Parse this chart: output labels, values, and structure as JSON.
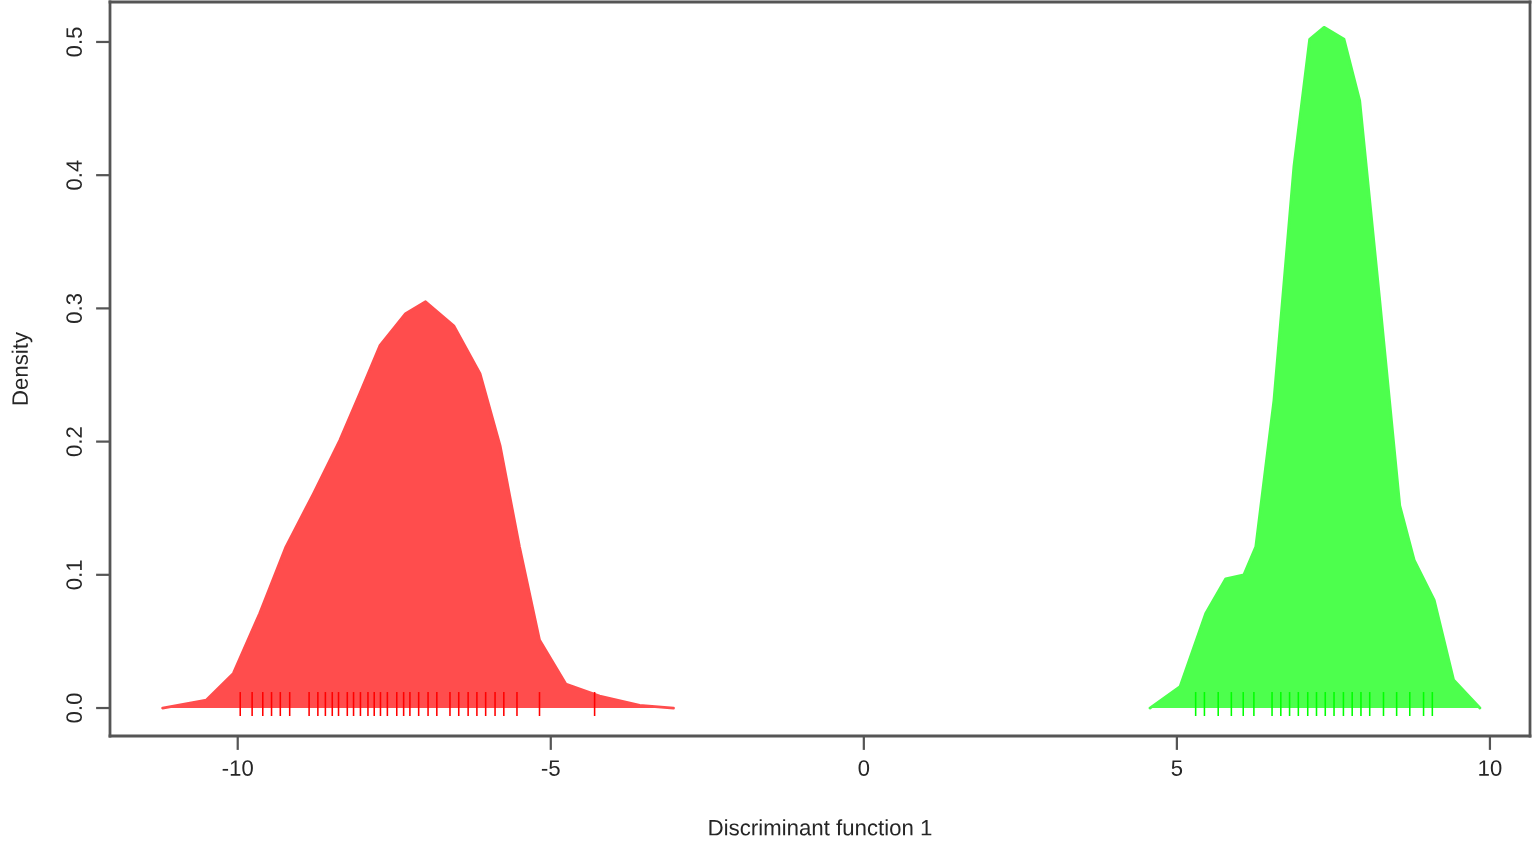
{
  "chart_data": {
    "type": "area",
    "xlabel": "Discriminant function 1",
    "ylabel": "Density",
    "xlim": [
      -12.04,
      10.64
    ],
    "ylim": [
      -0.021,
      0.53
    ],
    "xticks": [
      -10,
      -5,
      0,
      5,
      10
    ],
    "yticks": [
      {
        "value": 0,
        "label": "0.0"
      },
      0.1,
      0.2,
      0.3,
      0.4,
      0.5
    ],
    "grid": false,
    "series": [
      {
        "color": "#ff4d4d",
        "x": [
          -11.2,
          -10.5,
          -10.07,
          -9.65,
          -9.23,
          -8.79,
          -8.37,
          -8.05,
          -7.73,
          -7.32,
          -7.0,
          -6.55,
          -6.13,
          -5.81,
          -5.5,
          -5.18,
          -4.76,
          -4.22,
          -3.58,
          -3.04
        ],
        "values": [
          0,
          0.006,
          0.026,
          0.071,
          0.121,
          0.161,
          0.201,
          0.236,
          0.272,
          0.296,
          0.305,
          0.287,
          0.251,
          0.197,
          0.121,
          0.051,
          0.018,
          0.009,
          0.002,
          0
        ]
      },
      {
        "color": "#4dff4d",
        "x": [
          4.57,
          5.05,
          5.46,
          5.78,
          6.07,
          6.26,
          6.55,
          6.87,
          7.12,
          7.35,
          7.67,
          7.92,
          8.24,
          8.56,
          8.79,
          9.11,
          9.42,
          9.84
        ],
        "values": [
          0,
          0.016,
          0.071,
          0.097,
          0.1,
          0.121,
          0.231,
          0.407,
          0.502,
          0.511,
          0.502,
          0.456,
          0.306,
          0.152,
          0.111,
          0.081,
          0.021,
          0
        ]
      },
      {
        "type": "bar",
        "color": "#ff0000",
        "x": [
          -9.96,
          -9.77,
          -9.6,
          -9.46,
          -9.32,
          -9.17,
          -8.86,
          -8.72,
          -8.6,
          -8.49,
          -8.39,
          -8.25,
          -8.15,
          -8.04,
          -7.92,
          -7.82,
          -7.72,
          -7.61,
          -7.46,
          -7.35,
          -7.25,
          -7.11,
          -6.96,
          -6.82,
          -6.61,
          -6.47,
          -6.32,
          -6.18,
          -6.04,
          -5.89,
          -5.75,
          -5.54,
          -5.18,
          -4.3
        ],
        "base": [
          -0.006,
          -0.006,
          -0.006,
          -0.006,
          -0.006,
          -0.006,
          -0.006,
          -0.006,
          -0.006,
          -0.006,
          -0.006,
          -0.006,
          -0.006,
          -0.006,
          -0.006,
          -0.006,
          -0.006,
          -0.006,
          -0.006,
          -0.006,
          -0.006,
          -0.006,
          -0.006,
          -0.006,
          -0.006,
          -0.006,
          -0.006,
          -0.006,
          -0.006,
          -0.006,
          -0.006,
          -0.006,
          -0.006,
          -0.006
        ],
        "values": [
          0.018,
          0.018,
          0.018,
          0.018,
          0.018,
          0.018,
          0.018,
          0.018,
          0.018,
          0.018,
          0.018,
          0.018,
          0.018,
          0.018,
          0.018,
          0.018,
          0.018,
          0.018,
          0.018,
          0.018,
          0.018,
          0.018,
          0.018,
          0.018,
          0.018,
          0.018,
          0.018,
          0.018,
          0.018,
          0.018,
          0.018,
          0.018,
          0.018,
          0.018
        ]
      },
      {
        "type": "bar",
        "color": "#00ff00",
        "x": [
          5.3,
          5.44,
          5.66,
          5.87,
          6.06,
          6.23,
          6.52,
          6.66,
          6.8,
          6.94,
          7.09,
          7.23,
          7.37,
          7.51,
          7.66,
          7.8,
          7.94,
          8.08,
          8.3,
          8.51,
          8.72,
          8.94,
          9.08
        ],
        "base": [
          -0.006,
          -0.006,
          -0.006,
          -0.006,
          -0.006,
          -0.006,
          -0.006,
          -0.006,
          -0.006,
          -0.006,
          -0.006,
          -0.006,
          -0.006,
          -0.006,
          -0.006,
          -0.006,
          -0.006,
          -0.006,
          -0.006,
          -0.006,
          -0.006,
          -0.006,
          -0.006
        ],
        "values": [
          0.018,
          0.018,
          0.018,
          0.018,
          0.018,
          0.018,
          0.018,
          0.018,
          0.018,
          0.018,
          0.018,
          0.018,
          0.018,
          0.018,
          0.018,
          0.018,
          0.018,
          0.018,
          0.018,
          0.018,
          0.018,
          0.018,
          0.018
        ]
      }
    ]
  }
}
